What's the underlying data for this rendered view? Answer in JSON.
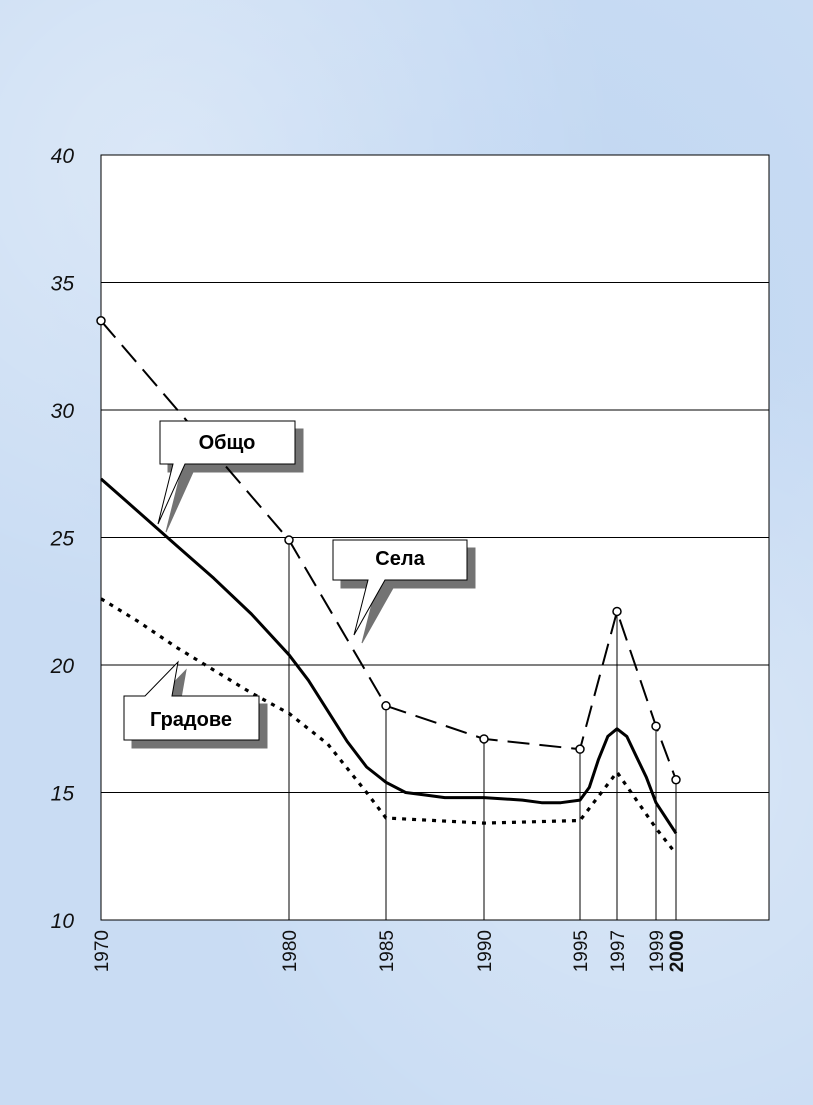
{
  "colors": {
    "background": "#c9dcf3",
    "plot_background": "#ffffff",
    "line": "#000000"
  },
  "chart_data": {
    "type": "line",
    "title": "",
    "xlabel": "",
    "ylabel": "",
    "ylim": [
      10,
      40
    ],
    "yticks": [
      10,
      15,
      20,
      25,
      30,
      35,
      40
    ],
    "xticks": [
      "1970",
      "1980",
      "1985",
      "1990",
      "1995",
      "1997",
      "1999",
      "2000"
    ],
    "grid": "horizontal",
    "series": [
      {
        "name": "Села",
        "style": "long-dash",
        "x": [
          1970,
          1980,
          1985,
          1990,
          1995,
          1997,
          1999,
          2000
        ],
        "y": [
          33.5,
          24.9,
          18.4,
          17.1,
          16.7,
          22.1,
          17.6,
          15.5
        ],
        "markers": true
      },
      {
        "name": "Общо",
        "style": "solid",
        "x": [
          1970,
          1972,
          1974,
          1976,
          1978,
          1980,
          1981,
          1982,
          1983,
          1984,
          1985,
          1986,
          1987,
          1988,
          1990,
          1992,
          1993,
          1994,
          1995,
          1995.5,
          1996,
          1996.5,
          1997,
          1997.5,
          1998,
          1998.5,
          1999,
          1999.5,
          2000
        ],
        "y": [
          27.3,
          26.0,
          24.7,
          23.4,
          22.0,
          20.4,
          19.4,
          18.2,
          17.0,
          16.0,
          15.4,
          15.0,
          14.9,
          14.8,
          14.8,
          14.7,
          14.6,
          14.6,
          14.7,
          15.2,
          16.3,
          17.2,
          17.5,
          17.2,
          16.4,
          15.6,
          14.6,
          14.0,
          13.4
        ],
        "markers": false
      },
      {
        "name": "Градове",
        "style": "dotted",
        "x": [
          1970,
          1972,
          1974,
          1976,
          1978,
          1980,
          1982,
          1984,
          1985,
          1990,
          1995,
          1997,
          1999,
          2000
        ],
        "y": [
          22.6,
          21.7,
          20.7,
          19.8,
          18.9,
          18.1,
          16.9,
          15.0,
          14.0,
          13.8,
          13.9,
          15.8,
          13.6,
          12.6
        ],
        "markers": false
      }
    ],
    "labels": {
      "total": "Общо",
      "villages": "Села",
      "towns": "Градове"
    }
  }
}
